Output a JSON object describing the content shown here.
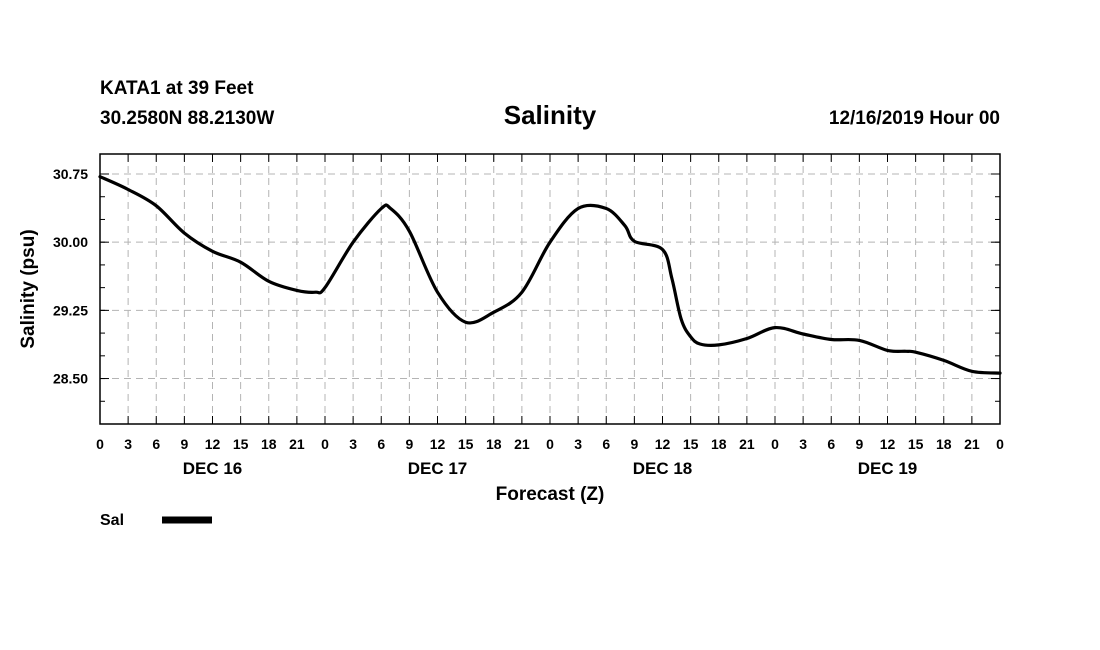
{
  "header": {
    "station": "KATA1 at 39 Feet",
    "coords": "30.2580N 88.2130W",
    "title": "Salinity",
    "datetime": "12/16/2019 Hour 00"
  },
  "legend": {
    "label": "Sal",
    "color": "#000000"
  },
  "chart_data": {
    "type": "line",
    "title": "Salinity",
    "xlabel": "Forecast (Z)",
    "ylabel": "Salinity (psu)",
    "xlim": [
      0,
      96
    ],
    "ylim": [
      28.0,
      30.97
    ],
    "grid": true,
    "yticks": [
      28.5,
      29.25,
      30.0,
      30.75
    ],
    "ytick_labels": [
      "28.50",
      "29.25",
      "30.00",
      "30.75"
    ],
    "xtick_hours": [
      0,
      3,
      6,
      9,
      12,
      15,
      18,
      21,
      24,
      27,
      30,
      33,
      36,
      39,
      42,
      45,
      48,
      51,
      54,
      57,
      60,
      63,
      66,
      69,
      72,
      75,
      78,
      81,
      84,
      87,
      90,
      93,
      96
    ],
    "xtick_labels": [
      "0",
      "3",
      "6",
      "9",
      "12",
      "15",
      "18",
      "21",
      "0",
      "3",
      "6",
      "9",
      "12",
      "15",
      "18",
      "21",
      "0",
      "3",
      "6",
      "9",
      "12",
      "15",
      "18",
      "21",
      "0",
      "3",
      "6",
      "9",
      "12",
      "15",
      "18",
      "21",
      "0"
    ],
    "day_labels": [
      {
        "hour": 12,
        "label": "DEC 16"
      },
      {
        "hour": 36,
        "label": "DEC 17"
      },
      {
        "hour": 60,
        "label": "DEC 18"
      },
      {
        "hour": 84,
        "label": "DEC 19"
      }
    ],
    "series": [
      {
        "name": "Sal",
        "color": "#000000",
        "x": [
          0,
          3,
          6,
          9,
          12,
          15,
          18,
          21,
          23,
          24,
          27,
          30,
          31,
          33,
          36,
          39,
          42,
          45,
          48,
          51,
          54,
          56,
          57,
          60,
          61,
          62,
          63,
          64,
          66,
          69,
          72,
          75,
          78,
          81,
          84,
          86,
          87,
          90,
          93,
          96
        ],
        "y": [
          30.72,
          30.58,
          30.4,
          30.1,
          29.9,
          29.78,
          29.57,
          29.47,
          29.45,
          29.5,
          30.0,
          30.37,
          30.37,
          30.12,
          29.45,
          29.12,
          29.23,
          29.45,
          30.0,
          30.37,
          30.37,
          30.18,
          30.01,
          29.92,
          29.6,
          29.15,
          28.96,
          28.88,
          28.87,
          28.94,
          29.06,
          28.99,
          28.93,
          28.92,
          28.81,
          28.8,
          28.79,
          28.7,
          28.58,
          28.56
        ]
      }
    ]
  }
}
